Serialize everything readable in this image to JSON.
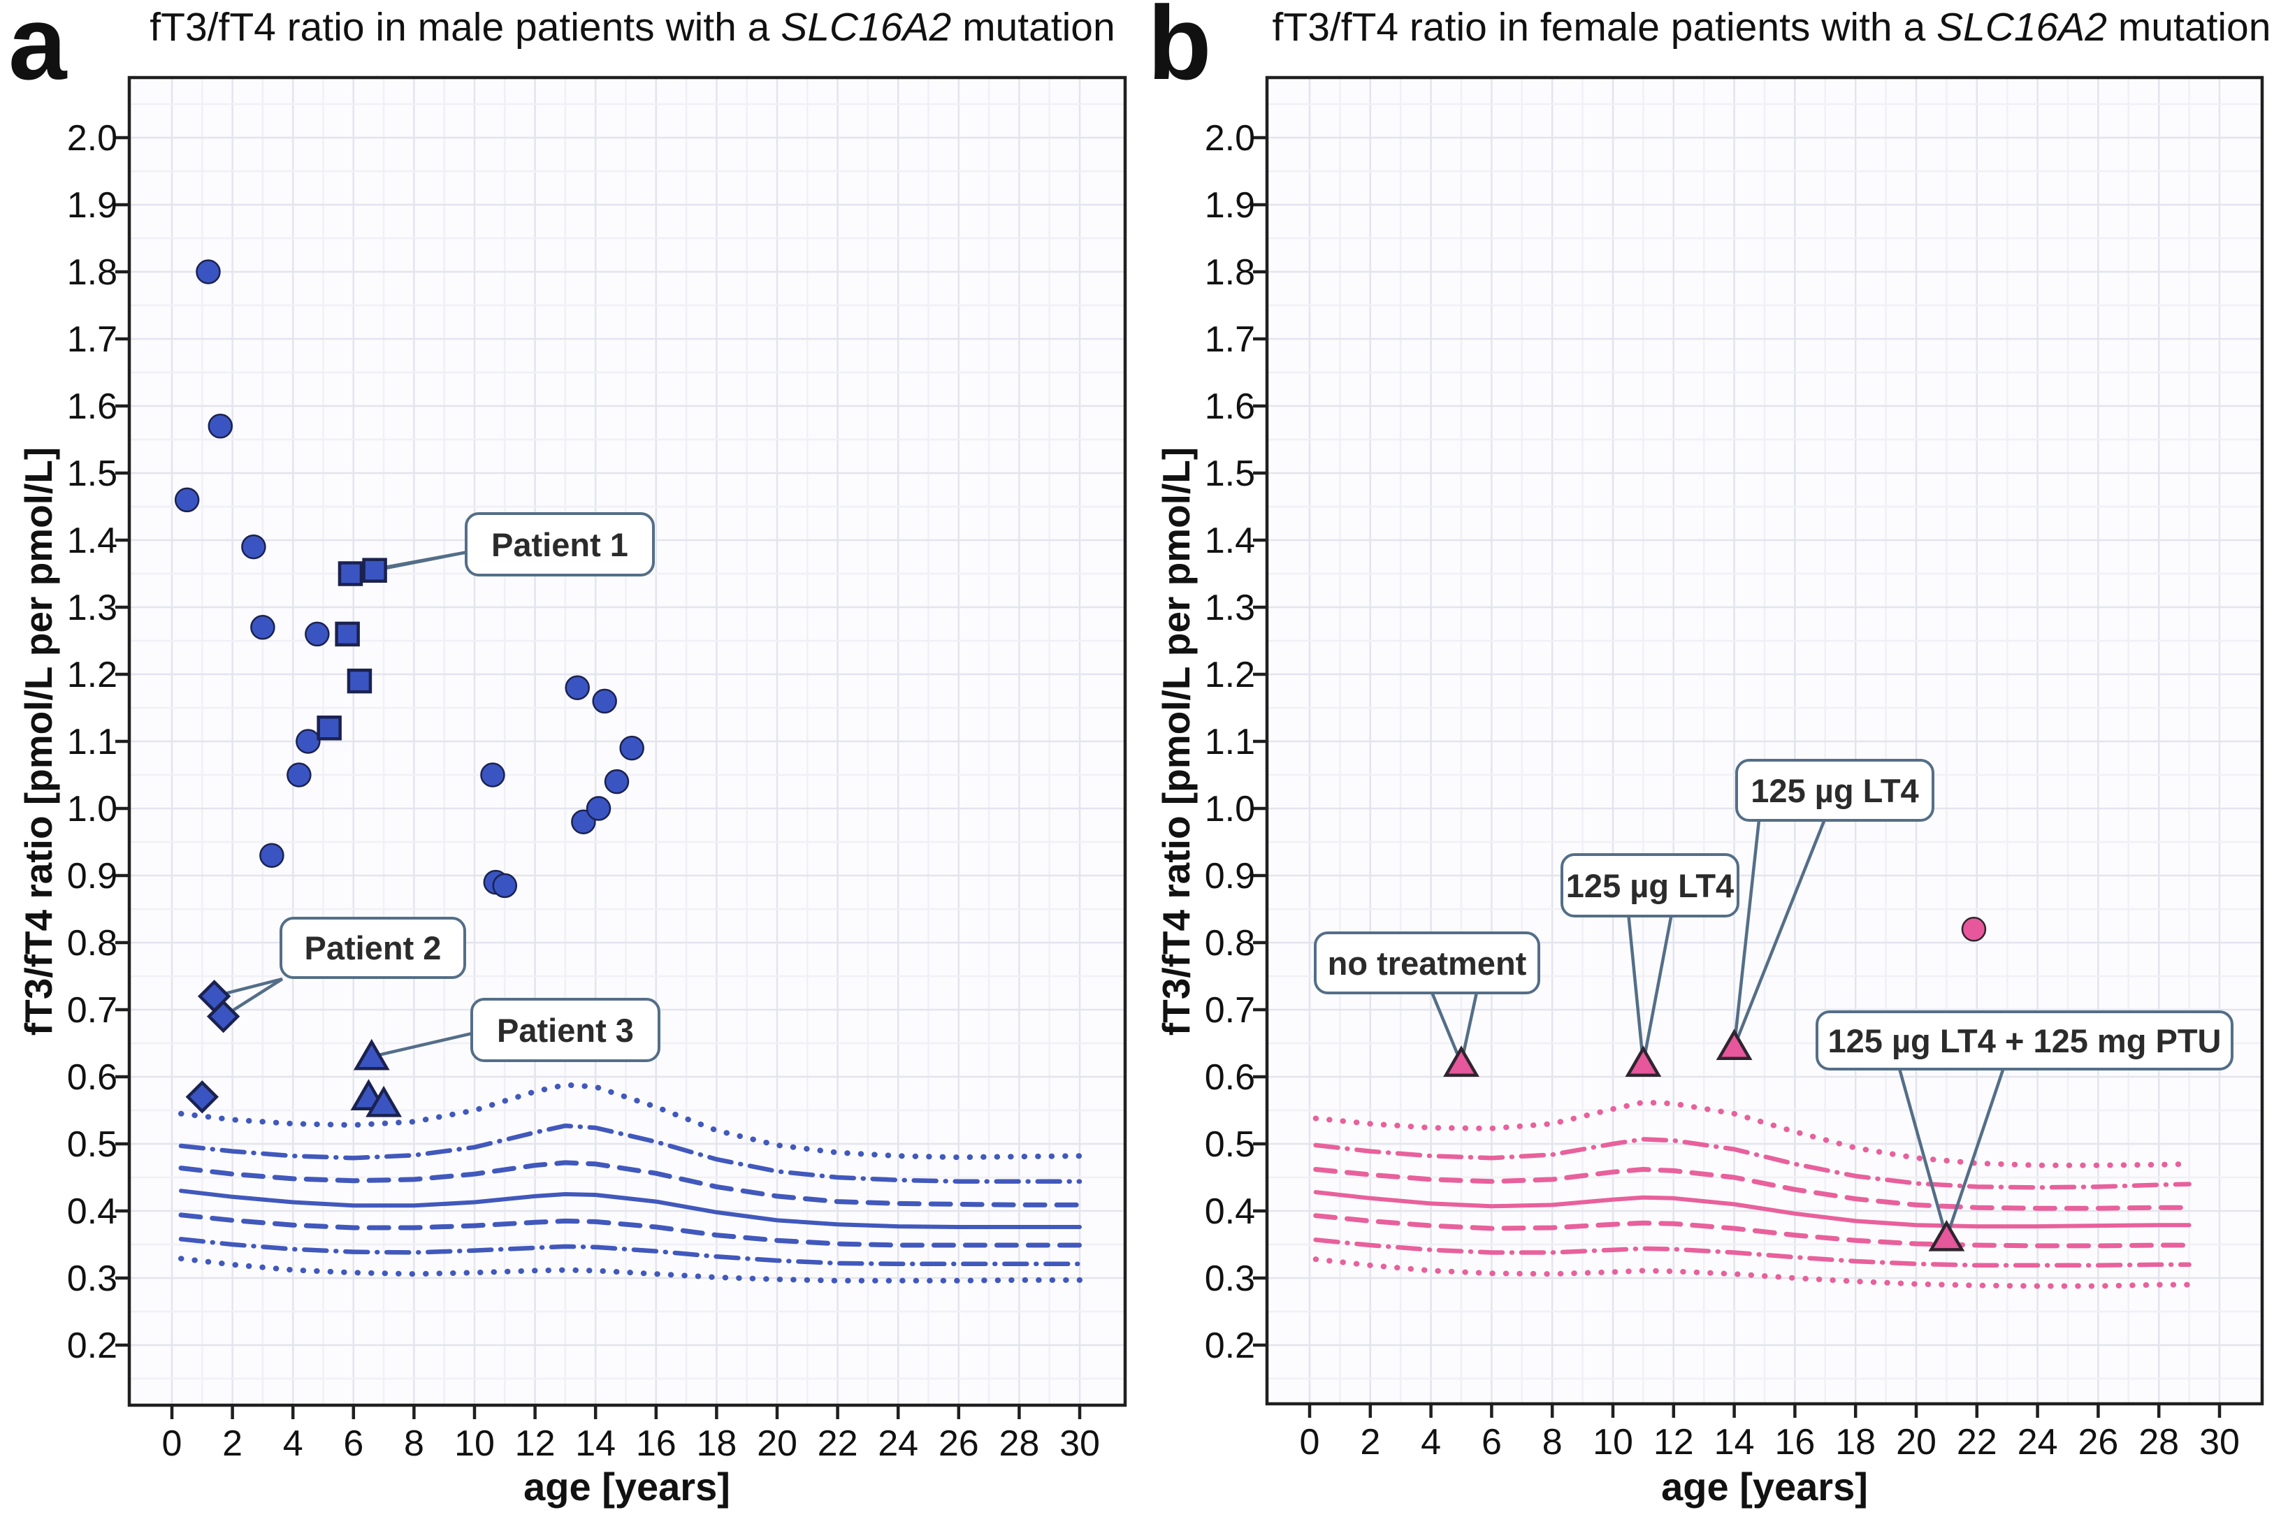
{
  "figure_title": "fT3/fT4 ratio scatter plots with reference percentile curves",
  "colors": {
    "male_marker": "#3A55C2",
    "male_marker_edge": "#1B2250",
    "male_curve": "#4158BC",
    "female_marker": "#E6579B",
    "female_marker_edge": "#30242F",
    "female_curve": "#E8609C",
    "callout_border": "#546E88",
    "grid_major": "#E3E4ED",
    "grid_minor": "#F0F0F6",
    "spine": "#1F1F1F"
  },
  "panels": [
    {
      "letter": "a",
      "title": {
        "pre": "fT3/fT4 ratio in male patients with a ",
        "italic": "SLC16A2",
        "post": " mutation"
      },
      "x_axis": {
        "label": "age [years]",
        "min": 0,
        "max": 30,
        "tick_labels": [
          "0",
          "2",
          "4",
          "6",
          "8",
          "10",
          "12",
          "14",
          "16",
          "18",
          "20",
          "22",
          "24",
          "26",
          "28",
          "30"
        ],
        "tick_values": [
          0,
          2,
          4,
          6,
          8,
          10,
          12,
          14,
          16,
          18,
          20,
          22,
          24,
          26,
          28,
          30
        ]
      },
      "y_axis": {
        "label": "fT3/fT4 ratio [pmol/L per pmol/L]",
        "min": 0.2,
        "max": 2.0,
        "tick_labels": [
          "2.0",
          "1.9",
          "1.8",
          "1.7",
          "1.6",
          "1.5",
          "1.4",
          "1.3",
          "1.2",
          "1.1",
          "1.0",
          "0.9",
          "0.8",
          "0.7",
          "0.6",
          "0.5",
          "0.4",
          "0.3",
          "0.2"
        ],
        "tick_values": [
          2.0,
          1.9,
          1.8,
          1.7,
          1.6,
          1.5,
          1.4,
          1.3,
          1.2,
          1.1,
          1.0,
          0.9,
          0.8,
          0.7,
          0.6,
          0.5,
          0.4,
          0.3,
          0.2
        ]
      },
      "chart_data": {
        "type": "scatter",
        "series": [
          {
            "marker": "circle",
            "points": [
              [
                0.5,
                1.46
              ],
              [
                1.2,
                1.8
              ],
              [
                1.6,
                1.57
              ],
              [
                2.7,
                1.39
              ],
              [
                3.0,
                1.27
              ],
              [
                4.8,
                1.26
              ],
              [
                3.3,
                0.93
              ],
              [
                4.2,
                1.05
              ],
              [
                4.5,
                1.1
              ],
              [
                10.6,
                1.05
              ],
              [
                10.7,
                0.89
              ],
              [
                11.0,
                0.885
              ],
              [
                13.4,
                1.18
              ],
              [
                14.3,
                1.16
              ],
              [
                13.6,
                0.98
              ],
              [
                14.1,
                1.0
              ],
              [
                14.7,
                1.04
              ],
              [
                15.2,
                1.09
              ]
            ]
          },
          {
            "marker": "square",
            "points": [
              [
                5.9,
                1.35
              ],
              [
                6.7,
                1.355
              ],
              [
                5.8,
                1.26
              ],
              [
                6.2,
                1.19
              ],
              [
                5.2,
                1.12
              ]
            ]
          },
          {
            "marker": "diamond",
            "points": [
              [
                1.4,
                0.72
              ],
              [
                1.7,
                0.69
              ],
              [
                1.0,
                0.57
              ]
            ]
          },
          {
            "marker": "triangle",
            "points": [
              [
                6.6,
                0.63
              ],
              [
                6.5,
                0.57
              ],
              [
                7.0,
                0.56
              ]
            ]
          }
        ],
        "reference_curves": {
          "ages": [
            0.3,
            2,
            4,
            6,
            8,
            10,
            12,
            13,
            14,
            16,
            18,
            20,
            22,
            24,
            26,
            28,
            30
          ],
          "percentiles": [
            {
              "style": "dotted",
              "values": [
                0.545,
                0.536,
                0.53,
                0.528,
                0.533,
                0.55,
                0.578,
                0.588,
                0.585,
                0.555,
                0.52,
                0.498,
                0.487,
                0.482,
                0.48,
                0.481,
                0.482
              ]
            },
            {
              "style": "dashdot",
              "values": [
                0.497,
                0.489,
                0.482,
                0.479,
                0.483,
                0.495,
                0.517,
                0.527,
                0.524,
                0.503,
                0.477,
                0.459,
                0.45,
                0.446,
                0.444,
                0.444,
                0.444
              ]
            },
            {
              "style": "dashed",
              "values": [
                0.464,
                0.455,
                0.448,
                0.445,
                0.447,
                0.455,
                0.468,
                0.472,
                0.47,
                0.456,
                0.436,
                0.422,
                0.414,
                0.411,
                0.41,
                0.409,
                0.409
              ]
            },
            {
              "style": "solid",
              "values": [
                0.43,
                0.421,
                0.413,
                0.408,
                0.408,
                0.413,
                0.422,
                0.425,
                0.424,
                0.414,
                0.398,
                0.386,
                0.38,
                0.377,
                0.376,
                0.376,
                0.376
              ]
            },
            {
              "style": "dashed",
              "values": [
                0.394,
                0.386,
                0.379,
                0.375,
                0.375,
                0.378,
                0.383,
                0.385,
                0.384,
                0.376,
                0.364,
                0.356,
                0.351,
                0.349,
                0.349,
                0.349,
                0.349
              ]
            },
            {
              "style": "dashdot",
              "values": [
                0.358,
                0.35,
                0.343,
                0.339,
                0.338,
                0.341,
                0.345,
                0.347,
                0.346,
                0.34,
                0.332,
                0.326,
                0.322,
                0.321,
                0.321,
                0.321,
                0.321
              ]
            },
            {
              "style": "dotted",
              "values": [
                0.329,
                0.32,
                0.312,
                0.308,
                0.306,
                0.308,
                0.311,
                0.312,
                0.311,
                0.306,
                0.301,
                0.298,
                0.296,
                0.296,
                0.296,
                0.297,
                0.297
              ]
            }
          ]
        },
        "annotations": [
          {
            "label": "Patient 1",
            "targets": [
              [
                5.9,
                1.35
              ],
              [
                6.7,
                1.355
              ]
            ]
          },
          {
            "label": "Patient 2",
            "targets": [
              [
                1.4,
                0.72
              ],
              [
                1.7,
                0.69
              ]
            ]
          },
          {
            "label": "Patient 3",
            "targets": [
              [
                6.6,
                0.63
              ]
            ]
          }
        ]
      }
    },
    {
      "letter": "b",
      "title": {
        "pre": "fT3/fT4 ratio in female patients with a ",
        "italic": "SLC16A2",
        "post": " mutation"
      },
      "x_axis": {
        "label": "age [years]",
        "min": 0,
        "max": 30,
        "tick_labels": [
          "0",
          "2",
          "4",
          "6",
          "8",
          "10",
          "12",
          "14",
          "16",
          "18",
          "20",
          "22",
          "24",
          "26",
          "28",
          "30"
        ],
        "tick_values": [
          0,
          2,
          4,
          6,
          8,
          10,
          12,
          14,
          16,
          18,
          20,
          22,
          24,
          26,
          28,
          30
        ]
      },
      "y_axis": {
        "label": "fT3/fT4 ratio [pmol/L per pmol/L]",
        "min": 0.2,
        "max": 2.0,
        "tick_labels": [
          "2.0",
          "1.9",
          "1.8",
          "1.7",
          "1.6",
          "1.5",
          "1.4",
          "1.3",
          "1.2",
          "1.1",
          "1.0",
          "0.9",
          "0.8",
          "0.7",
          "0.6",
          "0.5",
          "0.4",
          "0.3",
          "0.2"
        ],
        "tick_values": [
          2.0,
          1.9,
          1.8,
          1.7,
          1.6,
          1.5,
          1.4,
          1.3,
          1.2,
          1.1,
          1.0,
          0.9,
          0.8,
          0.7,
          0.6,
          0.5,
          0.4,
          0.3,
          0.2
        ]
      },
      "chart_data": {
        "type": "scatter",
        "series": [
          {
            "marker": "triangle",
            "points": [
              [
                5.0,
                0.62
              ],
              [
                11.0,
                0.62
              ],
              [
                14.0,
                0.645
              ],
              [
                21.0,
                0.36
              ]
            ]
          },
          {
            "marker": "circle",
            "points": [
              [
                21.9,
                0.82
              ]
            ]
          }
        ],
        "reference_curves": {
          "ages": [
            0.2,
            2,
            4,
            6,
            8,
            10,
            11,
            12,
            14,
            16,
            18,
            20,
            22,
            24,
            26,
            28,
            29
          ],
          "percentiles": [
            {
              "style": "dotted",
              "values": [
                0.538,
                0.53,
                0.524,
                0.523,
                0.53,
                0.552,
                0.562,
                0.56,
                0.545,
                0.518,
                0.494,
                0.479,
                0.471,
                0.468,
                0.468,
                0.469,
                0.47
              ]
            },
            {
              "style": "dashdot",
              "values": [
                0.498,
                0.489,
                0.482,
                0.479,
                0.484,
                0.5,
                0.507,
                0.505,
                0.492,
                0.47,
                0.452,
                0.441,
                0.436,
                0.435,
                0.436,
                0.439,
                0.44
              ]
            },
            {
              "style": "dashed",
              "values": [
                0.462,
                0.454,
                0.447,
                0.444,
                0.447,
                0.458,
                0.462,
                0.46,
                0.45,
                0.432,
                0.418,
                0.409,
                0.405,
                0.404,
                0.404,
                0.405,
                0.405
              ]
            },
            {
              "style": "solid",
              "values": [
                0.428,
                0.419,
                0.411,
                0.407,
                0.409,
                0.417,
                0.42,
                0.419,
                0.41,
                0.396,
                0.385,
                0.379,
                0.377,
                0.377,
                0.378,
                0.379,
                0.379
              ]
            },
            {
              "style": "dashed",
              "values": [
                0.393,
                0.385,
                0.378,
                0.374,
                0.375,
                0.38,
                0.382,
                0.381,
                0.374,
                0.364,
                0.356,
                0.351,
                0.349,
                0.348,
                0.348,
                0.349,
                0.349
              ]
            },
            {
              "style": "dashdot",
              "values": [
                0.357,
                0.349,
                0.342,
                0.338,
                0.338,
                0.342,
                0.344,
                0.343,
                0.338,
                0.331,
                0.325,
                0.321,
                0.319,
                0.319,
                0.319,
                0.32,
                0.32
              ]
            },
            {
              "style": "dotted",
              "values": [
                0.328,
                0.319,
                0.311,
                0.307,
                0.306,
                0.309,
                0.311,
                0.31,
                0.306,
                0.3,
                0.295,
                0.291,
                0.289,
                0.288,
                0.288,
                0.29,
                0.29
              ]
            }
          ]
        },
        "annotations": [
          {
            "label": "no treatment",
            "targets": [
              [
                5.0,
                0.62
              ]
            ]
          },
          {
            "label": "125 µg LT4",
            "targets": [
              [
                11.0,
                0.62
              ]
            ]
          },
          {
            "label": "125 µg LT4",
            "targets": [
              [
                14.0,
                0.645
              ]
            ]
          },
          {
            "label": "125 µg LT4 + 125 mg PTU",
            "targets": [
              [
                21.0,
                0.36
              ]
            ]
          }
        ]
      }
    }
  ]
}
